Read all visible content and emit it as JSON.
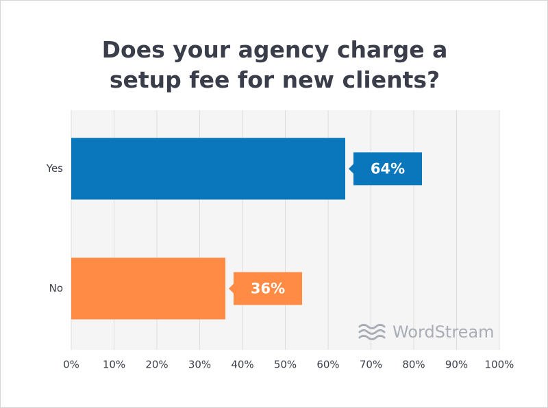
{
  "chart_data": {
    "type": "bar",
    "orientation": "horizontal",
    "title": "Does your agency charge a setup fee for new clients?",
    "categories": [
      "Yes",
      "No"
    ],
    "values": [
      64,
      36
    ],
    "value_labels": [
      "64%",
      "36%"
    ],
    "colors": [
      "#0a77bd",
      "#ff8b45"
    ],
    "xlim": [
      0,
      100
    ],
    "xticks": [
      {
        "value": 0,
        "label": "0%"
      },
      {
        "value": 10,
        "label": "10%"
      },
      {
        "value": 20,
        "label": "20%"
      },
      {
        "value": 30,
        "label": "30%"
      },
      {
        "value": 40,
        "label": "40%"
      },
      {
        "value": 50,
        "label": "50%"
      },
      {
        "value": 60,
        "label": "60%"
      },
      {
        "value": 70,
        "label": "70%"
      },
      {
        "value": 80,
        "label": "80%"
      },
      {
        "value": 90,
        "label": "90%"
      },
      {
        "value": 100,
        "label": "100%"
      }
    ],
    "grid": true,
    "watermark": "WordStream"
  }
}
